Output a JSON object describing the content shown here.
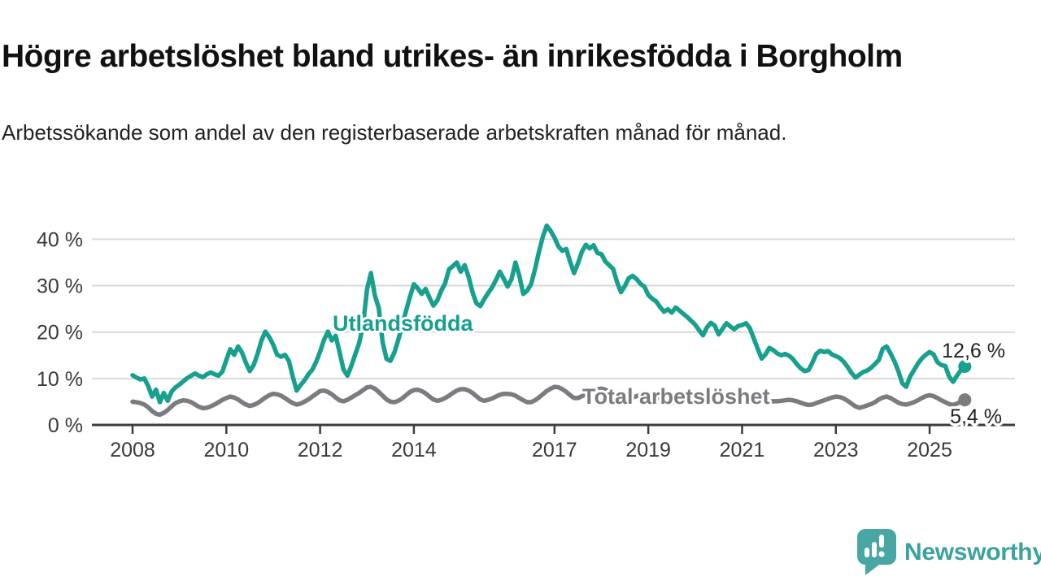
{
  "header": {
    "title": "Högre arbetslöshet bland utrikes- än inrikesfödda i Borgholm",
    "subtitle": "Arbetssökande som andel av den registerbaserade arbetskraften månad för månad."
  },
  "chart_data": {
    "type": "line",
    "title": "Högre arbetslöshet bland utrikes- än inrikesfödda i Borgholm",
    "x_start_year": 2008,
    "x_step": "1 month",
    "grid": "horizontal",
    "colors": {
      "grid": "#d9d9d9",
      "axis": "#3c3c3c",
      "tick_text": "#3a3a3a"
    },
    "x_axis": {
      "tick_years": [
        2008,
        2010,
        2012,
        2014,
        2017,
        2019,
        2021,
        2023,
        2025
      ],
      "tick_labels": [
        "2008",
        "2010",
        "2012",
        "2014",
        "2017",
        "2019",
        "2021",
        "2023",
        "2025"
      ]
    },
    "y_axis": {
      "ticks": [
        0,
        10,
        20,
        30,
        40
      ],
      "tick_labels": [
        "0 %",
        "10 %",
        "20 %",
        "30 %",
        "40 %"
      ],
      "range": [
        0,
        44
      ]
    },
    "series": [
      {
        "name": "Utlandsfödda",
        "color": "#17a08d",
        "end_label": "12,6 %",
        "values": [
          10.7,
          10.2,
          9.8,
          10.0,
          8.4,
          6.1,
          7.6,
          4.9,
          6.9,
          5.2,
          7.2,
          8.1,
          8.7,
          9.4,
          10.1,
          10.6,
          11.1,
          10.6,
          10.3,
          10.9,
          11.3,
          10.9,
          10.6,
          11.5,
          14.0,
          16.3,
          15.1,
          16.9,
          15.6,
          13.4,
          11.6,
          12.9,
          15.3,
          18.2,
          20.1,
          18.9,
          17.3,
          15.1,
          14.7,
          15.1,
          13.8,
          10.4,
          7.4,
          8.6,
          9.6,
          10.9,
          11.9,
          13.6,
          15.8,
          18.3,
          20.1,
          18.2,
          19.2,
          15.6,
          11.9,
          10.6,
          12.7,
          15.2,
          17.6,
          21.5,
          29.2,
          32.7,
          27.9,
          25.2,
          17.8,
          14.2,
          13.8,
          15.6,
          18.3,
          21.4,
          24.6,
          27.6,
          30.3,
          29.4,
          28.2,
          29.3,
          27.4,
          25.7,
          26.8,
          28.9,
          30.5,
          33.5,
          34.2,
          35.0,
          33.0,
          34.4,
          31.9,
          28.6,
          26.2,
          25.6,
          27.1,
          28.4,
          29.6,
          31.2,
          33.0,
          31.5,
          29.8,
          31.4,
          35.0,
          32.1,
          28.2,
          28.9,
          30.3,
          33.5,
          37.2,
          40.5,
          42.9,
          41.8,
          40.3,
          38.4,
          37.5,
          37.9,
          35.1,
          32.7,
          34.8,
          37.3,
          38.8,
          38.0,
          38.7,
          37.0,
          36.8,
          35.2,
          34.4,
          33.6,
          30.8,
          28.6,
          29.9,
          31.6,
          32.1,
          31.4,
          30.4,
          29.8,
          28.0,
          27.2,
          26.6,
          25.4,
          24.4,
          24.9,
          24.2,
          25.3,
          24.6,
          23.9,
          23.2,
          22.4,
          21.6,
          20.4,
          19.3,
          21.0,
          22.0,
          21.4,
          19.5,
          20.7,
          21.9,
          21.2,
          20.6,
          21.3,
          21.5,
          21.9,
          20.8,
          18.6,
          16.4,
          14.3,
          15.2,
          16.6,
          16.1,
          15.4,
          15.0,
          15.3,
          14.9,
          14.2,
          13.1,
          12.2,
          11.6,
          11.8,
          13.4,
          15.3,
          16.0,
          15.7,
          15.9,
          15.2,
          14.8,
          14.4,
          13.6,
          12.5,
          11.2,
          10.2,
          10.8,
          11.4,
          11.7,
          12.3,
          13.1,
          14.0,
          16.4,
          16.9,
          15.4,
          13.7,
          11.6,
          9.0,
          8.2,
          10.4,
          11.8,
          13.2,
          14.3,
          15.1,
          15.7,
          15.2,
          13.5,
          12.9,
          12.7,
          10.4,
          9.3,
          10.6,
          11.8,
          12.6
        ]
      },
      {
        "name": "Total arbetslöshet",
        "color": "#7b7b80",
        "end_label": "5,4 %",
        "values": [
          5.0,
          4.9,
          4.7,
          4.4,
          3.8,
          3.0,
          2.4,
          2.2,
          2.6,
          3.2,
          4.0,
          4.7,
          5.1,
          5.3,
          5.2,
          4.9,
          4.4,
          3.9,
          3.6,
          3.7,
          4.0,
          4.4,
          4.9,
          5.4,
          5.8,
          6.1,
          5.9,
          5.5,
          4.9,
          4.4,
          4.1,
          4.3,
          4.7,
          5.3,
          5.9,
          6.4,
          6.7,
          6.6,
          6.3,
          5.8,
          5.2,
          4.7,
          4.4,
          4.6,
          5.0,
          5.5,
          6.1,
          6.7,
          7.3,
          7.4,
          7.1,
          6.6,
          5.9,
          5.3,
          5.1,
          5.4,
          5.9,
          6.4,
          6.9,
          7.5,
          8.1,
          8.2,
          7.8,
          7.1,
          6.3,
          5.5,
          5.0,
          4.9,
          5.2,
          5.7,
          6.4,
          7.1,
          7.5,
          7.6,
          7.3,
          6.8,
          6.1,
          5.5,
          5.2,
          5.4,
          5.8,
          6.3,
          6.9,
          7.4,
          7.7,
          7.7,
          7.4,
          6.9,
          6.2,
          5.5,
          5.2,
          5.4,
          5.7,
          6.1,
          6.5,
          6.7,
          6.7,
          6.6,
          6.3,
          5.8,
          5.3,
          4.9,
          4.9,
          5.3,
          5.9,
          6.6,
          7.3,
          7.8,
          8.2,
          8.1,
          7.7,
          7.1,
          6.4,
          5.8,
          5.8,
          6.2,
          6.6,
          7.0,
          7.4,
          7.7,
          7.8,
          7.6,
          7.2,
          6.6,
          5.9,
          5.3,
          5.2,
          5.5,
          5.9,
          6.2,
          6.4,
          6.5,
          6.5,
          6.4,
          6.1,
          5.7,
          5.2,
          4.8,
          4.8,
          5.1,
          5.4,
          5.6,
          5.8,
          6.0,
          6.2,
          6.3,
          6.4,
          6.6,
          6.7,
          6.6,
          6.4,
          6.3,
          6.2,
          6.1,
          6.0,
          6.1,
          6.2,
          6.2,
          6.0,
          5.7,
          5.3,
          5.0,
          4.9,
          5.0,
          5.1,
          5.1,
          5.2,
          5.3,
          5.4,
          5.3,
          5.1,
          4.8,
          4.5,
          4.3,
          4.4,
          4.7,
          5.0,
          5.3,
          5.6,
          5.9,
          6.1,
          6.0,
          5.7,
          5.2,
          4.6,
          4.0,
          3.7,
          3.9,
          4.2,
          4.5,
          4.9,
          5.5,
          5.9,
          6.1,
          5.8,
          5.3,
          4.8,
          4.5,
          4.4,
          4.6,
          4.9,
          5.3,
          5.8,
          6.2,
          6.4,
          6.2,
          5.8,
          5.3,
          4.9,
          4.5,
          4.3,
          4.6,
          5.0,
          5.4
        ]
      }
    ]
  },
  "footer": {
    "logo_text": "Newsworthy",
    "logo_icon": "speech-bubble-bar-chart",
    "logo_icon_color": "#48a7a3",
    "logo_text_color": "#3ba29d"
  }
}
